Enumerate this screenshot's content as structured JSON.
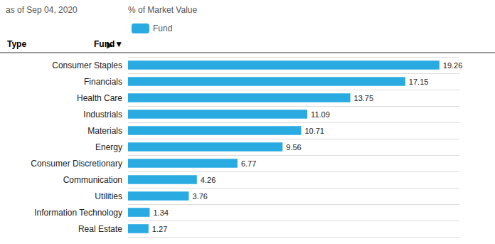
{
  "chart_data": {
    "type": "bar",
    "orientation": "horizontal",
    "annotations": [
      "as of Sep 04, 2020",
      "% of Market Value",
      "Type",
      "▶",
      "Fund▼"
    ],
    "categories": [
      "Consumer Staples",
      "Financials",
      "Health Care",
      "Industrials",
      "Materials",
      "Energy",
      "Consumer Discretionary",
      "Communication",
      "Utilities",
      "Information Technology",
      "Real Estate"
    ],
    "series": [
      {
        "name": "Fund",
        "color": "#29ABE2",
        "values": [
          19.26,
          17.15,
          13.75,
          11.09,
          10.71,
          9.56,
          6.77,
          4.26,
          3.76,
          1.34,
          1.27
        ]
      }
    ],
    "xlim": [
      0,
      20.5
    ],
    "tick_labels": false,
    "data_labels": true,
    "grid": true,
    "legend": "upper left"
  }
}
